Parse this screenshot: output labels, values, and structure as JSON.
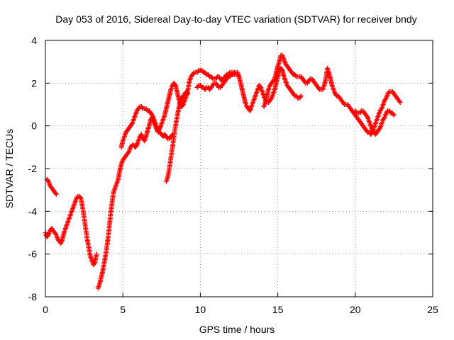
{
  "chart_data": {
    "type": "scatter",
    "title": "Day 053 of 2016, Sidereal Day-to-day VTEC variation (SDTVAR) for receiver bndy",
    "xlabel": "GPS time / hours",
    "ylabel": "SDTVAR / TECUs",
    "xlim": [
      0,
      25
    ],
    "ylim": [
      -8,
      4
    ],
    "xticks": [
      0,
      5,
      10,
      15,
      20,
      25
    ],
    "yticks": [
      -8,
      -6,
      -4,
      -2,
      0,
      2,
      4
    ],
    "grid": true,
    "marker": "plus",
    "color": "#ff0000",
    "segments": [
      {
        "x": [
          0.1,
          0.2,
          0.3,
          0.4,
          0.5,
          0.6,
          0.7
        ],
        "y": [
          -2.5,
          -2.6,
          -2.8,
          -2.9,
          -3.0,
          -3.1,
          -3.2
        ]
      },
      {
        "x": [
          0.0,
          0.1,
          0.2,
          0.3,
          0.4,
          0.5,
          0.6,
          0.7,
          0.8,
          0.9,
          1.0,
          1.1,
          1.2,
          1.3,
          1.4,
          1.5,
          1.6,
          1.7,
          1.8,
          1.9,
          2.0,
          2.1,
          2.2,
          2.3,
          2.4,
          2.5,
          2.6,
          2.7,
          2.8,
          2.9,
          3.0,
          3.1,
          3.2,
          3.3
        ],
        "y": [
          -5.0,
          -5.2,
          -5.1,
          -4.9,
          -4.8,
          -4.9,
          -5.0,
          -5.1,
          -5.3,
          -5.4,
          -5.5,
          -5.3,
          -5.0,
          -4.8,
          -4.6,
          -4.4,
          -4.2,
          -4.0,
          -3.8,
          -3.6,
          -3.4,
          -3.3,
          -3.3,
          -3.4,
          -3.8,
          -4.3,
          -4.8,
          -5.3,
          -5.7,
          -6.1,
          -6.3,
          -6.5,
          -6.4,
          -6.0
        ]
      },
      {
        "x": [
          3.4,
          3.5,
          3.6,
          3.7,
          3.8,
          3.9,
          4.0,
          4.1,
          4.2,
          4.3,
          4.4,
          4.5,
          4.6,
          4.7,
          4.8,
          4.9,
          5.0,
          5.1,
          5.2,
          5.3,
          5.4,
          5.5,
          5.6,
          5.7,
          5.8,
          5.9,
          6.0,
          6.1,
          6.2,
          6.3,
          6.4,
          6.5,
          6.6,
          6.7,
          6.8,
          6.9,
          7.0,
          7.1,
          7.2,
          7.3,
          7.4,
          7.5,
          7.6,
          7.7,
          7.8,
          7.9,
          8.0,
          8.1,
          8.2
        ],
        "y": [
          -7.6,
          -7.4,
          -7.1,
          -6.8,
          -6.4,
          -6.0,
          -5.5,
          -4.9,
          -4.2,
          -3.6,
          -3.1,
          -2.9,
          -2.7,
          -2.5,
          -2.1,
          -1.8,
          -1.6,
          -1.5,
          -1.4,
          -1.3,
          -1.2,
          -1.0,
          -0.9,
          -0.9,
          -1.0,
          -0.9,
          -0.7,
          -0.5,
          -0.4,
          -0.6,
          -0.7,
          -0.5,
          -0.2,
          0.0,
          0.3,
          0.4,
          0.2,
          0.0,
          -0.2,
          -0.3,
          -0.3,
          -0.4,
          -0.5,
          -0.4,
          -0.5,
          -0.6,
          -0.6,
          -0.5,
          -0.4
        ]
      },
      {
        "x": [
          4.9,
          5.0,
          5.1,
          5.2,
          5.3,
          5.4,
          5.5,
          5.6,
          5.7,
          5.8,
          5.9,
          6.0,
          6.1,
          6.2,
          6.3,
          6.4,
          6.5,
          6.6,
          6.7,
          6.8,
          6.9,
          7.0,
          7.1,
          7.2,
          7.3,
          7.4,
          7.5,
          7.6,
          7.7,
          7.8,
          7.9,
          8.0,
          8.1,
          8.2,
          8.3,
          8.4,
          8.5,
          8.6,
          8.7,
          8.8,
          8.9,
          9.0,
          9.1,
          9.2,
          9.3,
          9.4,
          9.5,
          9.6,
          9.7,
          9.8,
          9.9,
          10.0,
          10.1,
          10.2,
          10.3,
          10.4,
          10.5,
          10.6,
          10.7,
          10.8,
          10.9,
          11.0,
          11.1,
          11.2,
          11.3,
          11.4,
          11.5,
          11.6,
          11.7,
          11.8,
          11.9,
          12.0,
          12.1,
          12.2,
          12.3,
          12.4,
          12.5
        ],
        "y": [
          -1.0,
          -0.7,
          -0.5,
          -0.3,
          -0.2,
          -0.1,
          0.0,
          0.1,
          0.3,
          0.5,
          0.7,
          0.8,
          0.9,
          0.9,
          0.8,
          0.8,
          0.8,
          0.7,
          0.7,
          0.6,
          0.5,
          0.3,
          0.1,
          -0.1,
          -0.2,
          -0.1,
          0.1,
          0.3,
          0.5,
          0.8,
          1.1,
          1.4,
          1.7,
          1.9,
          2.0,
          1.9,
          1.6,
          1.3,
          1.0,
          0.9,
          1.0,
          1.2,
          1.4,
          1.7,
          2.1,
          2.3,
          2.4,
          2.5,
          2.5,
          2.5,
          2.6,
          2.6,
          2.6,
          2.5,
          2.5,
          2.4,
          2.4,
          2.3,
          2.3,
          2.2,
          2.2,
          2.2,
          2.3,
          2.3,
          2.2,
          2.1,
          2.2,
          2.3,
          2.4,
          2.4,
          2.5,
          2.5,
          2.5,
          2.4,
          2.4,
          2.4,
          2.3
        ]
      },
      {
        "x": [
          7.8,
          7.9,
          8.0,
          8.1,
          8.2,
          8.3,
          8.4,
          8.5,
          8.6,
          8.7,
          8.8,
          8.9,
          9.0,
          9.1,
          9.2
        ],
        "y": [
          -2.6,
          -2.4,
          -2.0,
          -1.5,
          -1.0,
          -0.5,
          0.0,
          0.4,
          0.8,
          1.1,
          1.3,
          1.4,
          1.5,
          1.6,
          1.5
        ]
      },
      {
        "x": [
          9.8,
          9.9,
          10.0,
          10.1,
          10.2,
          10.3,
          10.4,
          10.5,
          10.6,
          10.7,
          10.8,
          10.9,
          11.0,
          11.1,
          11.2,
          11.3,
          11.4,
          11.5,
          11.6,
          11.7,
          11.8,
          11.9,
          12.0,
          12.1,
          12.2,
          12.3,
          12.4,
          12.5,
          12.6,
          12.7,
          12.8,
          12.9,
          13.0,
          13.1,
          13.2,
          13.3,
          13.4,
          13.5,
          13.6,
          13.7,
          13.8,
          13.9,
          14.0,
          14.1,
          14.2,
          14.3,
          14.4,
          14.5,
          14.6,
          14.7,
          14.8,
          14.9,
          15.0,
          15.1,
          15.2,
          15.3,
          15.4,
          15.5,
          15.6,
          15.7,
          15.8,
          15.9,
          16.0,
          16.1,
          16.2,
          16.3,
          16.4,
          16.5
        ],
        "y": [
          1.8,
          1.9,
          1.9,
          1.8,
          1.8,
          1.7,
          1.8,
          1.8,
          1.7,
          1.8,
          1.9,
          2.0,
          2.0,
          1.9,
          1.8,
          1.8,
          1.9,
          2.0,
          2.1,
          2.2,
          2.3,
          2.3,
          2.4,
          2.4,
          2.5,
          2.5,
          2.5,
          2.3,
          2.0,
          1.7,
          1.4,
          1.1,
          0.9,
          0.8,
          0.7,
          0.9,
          1.1,
          1.3,
          1.5,
          1.7,
          1.9,
          1.8,
          1.6,
          1.4,
          1.2,
          1.1,
          1.1,
          1.2,
          1.3,
          1.5,
          1.7,
          2.0,
          2.3,
          2.6,
          2.7,
          2.6,
          2.3,
          2.1,
          1.9,
          1.8,
          1.7,
          1.6,
          1.5,
          1.4,
          1.4,
          1.3,
          1.3,
          1.4
        ]
      },
      {
        "x": [
          14.1,
          14.2,
          14.3,
          14.4,
          14.5,
          14.6,
          14.7,
          14.8,
          14.9,
          15.0,
          15.1,
          15.2,
          15.3,
          15.4,
          15.5,
          15.6,
          15.7,
          15.8,
          15.9,
          16.0,
          16.1,
          16.2,
          16.3,
          16.4,
          16.5,
          16.6,
          16.7,
          16.8,
          16.9,
          17.0,
          17.1,
          17.2,
          17.3,
          17.4,
          17.5,
          17.6,
          17.7,
          17.8,
          17.9,
          18.0,
          18.1,
          18.2,
          18.3,
          18.4,
          18.5,
          18.6,
          18.7,
          18.8,
          18.9,
          19.0,
          19.1,
          19.2,
          19.3,
          19.4,
          19.5,
          19.6,
          19.7,
          19.8,
          19.9,
          20.0,
          20.1,
          20.2,
          20.3,
          20.4,
          20.5,
          20.6,
          20.7,
          20.8,
          20.9,
          21.0,
          21.1,
          21.2,
          21.3,
          21.4,
          21.5,
          21.6,
          21.7,
          21.8,
          21.9,
          22.0,
          22.1,
          22.2,
          22.3,
          22.4,
          22.5,
          22.6,
          22.7,
          22.8,
          22.9
        ],
        "y": [
          0.9,
          1.1,
          1.4,
          1.7,
          1.9,
          2.0,
          2.1,
          2.2,
          2.5,
          2.8,
          3.0,
          3.3,
          3.3,
          3.1,
          2.9,
          2.8,
          2.7,
          2.6,
          2.5,
          2.4,
          2.4,
          2.3,
          2.3,
          2.3,
          2.3,
          2.2,
          2.1,
          2.0,
          2.0,
          2.1,
          2.2,
          2.2,
          2.1,
          2.0,
          1.9,
          1.8,
          1.7,
          1.7,
          1.7,
          1.9,
          2.2,
          2.7,
          2.5,
          2.2,
          1.9,
          1.7,
          1.5,
          1.4,
          1.4,
          1.3,
          1.2,
          1.1,
          1.0,
          1.0,
          1.0,
          0.9,
          0.8,
          0.7,
          0.6,
          0.5,
          0.4,
          0.3,
          0.2,
          0.1,
          0.0,
          -0.1,
          -0.2,
          -0.3,
          -0.3,
          -0.4,
          -0.3,
          -0.1,
          0.1,
          0.3,
          0.5,
          0.7,
          0.8,
          1.0,
          1.2,
          1.3,
          1.5,
          1.6,
          1.6,
          1.6,
          1.5,
          1.4,
          1.3,
          1.2,
          1.1
        ]
      },
      {
        "x": [
          20.0,
          20.1,
          20.2,
          20.3,
          20.4,
          20.5,
          20.6,
          20.7,
          20.8,
          20.9,
          21.0,
          21.1,
          21.2,
          21.3,
          21.4,
          21.5,
          21.6,
          21.7,
          21.8,
          21.9,
          22.0,
          22.1,
          22.2,
          22.3,
          22.4,
          22.5
        ],
        "y": [
          0.7,
          0.6,
          0.6,
          0.6,
          0.7,
          0.7,
          0.6,
          0.5,
          0.4,
          0.2,
          0.0,
          -0.2,
          -0.3,
          -0.4,
          -0.3,
          -0.2,
          -0.1,
          0.1,
          0.3,
          0.4,
          0.6,
          0.7,
          0.7,
          0.6,
          0.6,
          0.5
        ]
      }
    ]
  }
}
